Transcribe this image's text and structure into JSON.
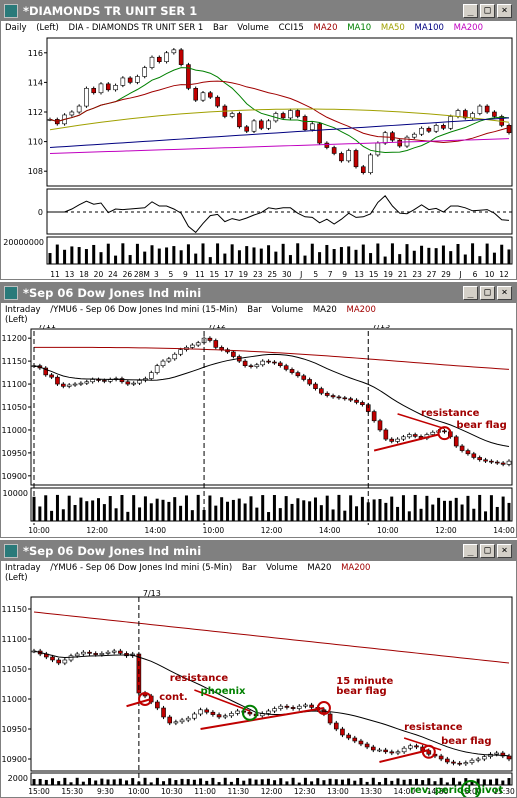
{
  "window1": {
    "title": "*DIAMONDS TR UNIT SER 1",
    "buttons": [
      "_",
      "□",
      "×"
    ],
    "header": {
      "period": "Daily",
      "scale": "(Left)",
      "symbol": "DIA - DIAMONDS TR UNIT SER 1",
      "type": "Bar",
      "volume": "Volume",
      "ind1": "CCI15",
      "ma1": "MA20",
      "ma2": "MA10",
      "ma3": "MA50",
      "ma4": "MA100",
      "ma5": "MA200"
    },
    "colors": {
      "MA20": "#a00000",
      "MA10": "#008000",
      "MA50": "#a0a000",
      "MA100": "#000080",
      "MA200": "#c000c0"
    }
  },
  "window2": {
    "title": "*Sep 06  Dow Jones Ind mini",
    "buttons": [
      "_",
      "□",
      "×"
    ],
    "header": {
      "period": "Intraday",
      "scale": "(Left)",
      "symbol": "/YMU6 - Sep 06  Dow Jones Ind mini  (15-Min)",
      "type": "Bar",
      "volume": "Volume",
      "ma1": "MA20",
      "ma2": "MA200"
    },
    "day_labels": [
      "7/11",
      "7/12",
      "7/13"
    ]
  },
  "window3": {
    "title": "*Sep 06  Dow Jones Ind mini",
    "buttons": [
      "_",
      "□",
      "×"
    ],
    "header": {
      "period": "Intraday",
      "scale": "(Left)",
      "symbol": "/YMU6 - Sep 06  Dow Jones Ind mini  (5-Min)",
      "type": "Bar",
      "volume": "Volume",
      "ma1": "MA20",
      "ma2": "MA200"
    },
    "day_labels": [
      "7/13"
    ],
    "annotations": {
      "cont": "cont.",
      "resistance1": "resistance",
      "phoenix": "phoenix",
      "bearflag15a": "15 minute",
      "bearflag15b": "bear flag",
      "resistance2": "resistance",
      "bearflag": "bear flag",
      "pivot": "rev. period pivot"
    }
  },
  "chart_data": [
    {
      "type": "bar",
      "title": "DIA - DIAMONDS TR UNIT SER 1",
      "period": "Daily",
      "ylim": [
        107,
        117
      ],
      "yticks": [
        108,
        110,
        112,
        114,
        116
      ],
      "xticks": [
        "11",
        "13",
        "18",
        "20",
        "24",
        "26",
        "28M",
        "3",
        "5",
        "9",
        "11",
        "15",
        "17",
        "19",
        "23",
        "25",
        "30",
        "J",
        "5",
        "7",
        "9",
        "13",
        "15",
        "19",
        "21",
        "23",
        "27",
        "29",
        "J",
        "6",
        "10",
        "12"
      ],
      "close": [
        111.5,
        111.2,
        111.8,
        112.0,
        112.4,
        113.6,
        113.3,
        113.9,
        113.5,
        113.8,
        114.3,
        114.0,
        114.4,
        115.0,
        115.7,
        115.4,
        116.0,
        116.2,
        115.2,
        113.6,
        112.8,
        113.3,
        113.0,
        112.4,
        111.7,
        111.9,
        111.0,
        110.7,
        111.4,
        110.9,
        111.4,
        111.9,
        111.6,
        112.1,
        111.7,
        110.8,
        111.2,
        109.9,
        109.6,
        109.2,
        108.7,
        109.4,
        108.3,
        107.9,
        109.1,
        109.9,
        110.6,
        110.1,
        109.7,
        110.3,
        110.5,
        110.9,
        110.7,
        111.1,
        110.9,
        111.7,
        112.1,
        111.6,
        111.9,
        112.4,
        112.0,
        111.7,
        111.1,
        110.6
      ],
      "cci_label": "0",
      "volume_label": "20000000",
      "series_names": [
        "MA20",
        "MA10",
        "MA50",
        "MA100",
        "MA200"
      ]
    },
    {
      "type": "bar",
      "title": "/YMU6 - Sep 06 Dow Jones Ind mini (15-Min)",
      "ylim": [
        10880,
        11220
      ],
      "yticks": [
        10900,
        10950,
        11000,
        11050,
        11100,
        11150,
        11200
      ],
      "xticks": [
        "10:00",
        "12:00",
        "14:00",
        "10:00",
        "12:00",
        "14:00",
        "10:00",
        "12:00",
        "14:00"
      ],
      "close": [
        11140,
        11135,
        11120,
        11115,
        11100,
        11095,
        11098,
        11100,
        11102,
        11105,
        11110,
        11108,
        11106,
        11110,
        11112,
        11105,
        11100,
        11102,
        11108,
        11112,
        11125,
        11140,
        11150,
        11155,
        11165,
        11175,
        11180,
        11185,
        11190,
        11200,
        11195,
        11180,
        11175,
        11170,
        11160,
        11150,
        11140,
        11138,
        11142,
        11150,
        11148,
        11146,
        11140,
        11132,
        11125,
        11118,
        11110,
        11100,
        11090,
        11080,
        11075,
        11072,
        11070,
        11068,
        11065,
        11060,
        11055,
        11040,
        11020,
        11000,
        10980,
        10975,
        10980,
        10985,
        10990,
        10986,
        10982,
        10990,
        10995,
        10998,
        10996,
        10985,
        10965,
        10955,
        10948,
        10940,
        10935,
        10932,
        10930,
        10928,
        10925,
        10932
      ],
      "volume_label": "10000",
      "series_names": [
        "MA20",
        "MA200"
      ]
    },
    {
      "type": "bar",
      "title": "/YMU6 - Sep 06 Dow Jones Ind mini (5-Min)",
      "ylim": [
        10880,
        11170
      ],
      "yticks": [
        10900,
        10950,
        11000,
        11050,
        11100,
        11150
      ],
      "xticks": [
        "15:00",
        "15:30",
        "9:30",
        "10:00",
        "10:30",
        "11:00",
        "11:30",
        "12:00",
        "12:30",
        "13:00",
        "13:30",
        "14:00",
        "14:30",
        "15:00",
        "15:30"
      ],
      "close": [
        11080,
        11075,
        11070,
        11065,
        11060,
        11065,
        11072,
        11075,
        11078,
        11076,
        11074,
        11076,
        11078,
        11080,
        11076,
        11072,
        11075,
        11010,
        11005,
        10995,
        10985,
        10970,
        10960,
        10962,
        10965,
        10968,
        10975,
        10982,
        10978,
        10974,
        10970,
        10972,
        10976,
        10980,
        10978,
        10975,
        10972,
        10976,
        10980,
        10984,
        10988,
        10986,
        10984,
        10988,
        10990,
        10986,
        10982,
        10975,
        10960,
        10950,
        10940,
        10935,
        10930,
        10925,
        10920,
        10915,
        10915,
        10912,
        10910,
        10912,
        10918,
        10922,
        10920,
        10914,
        10908,
        10905,
        10900,
        10895,
        10893,
        10892,
        10894,
        10898,
        10900,
        10904,
        10908,
        10910,
        10905,
        10900
      ],
      "volume_label": "2000",
      "series_names": [
        "MA20",
        "MA200"
      ]
    }
  ]
}
